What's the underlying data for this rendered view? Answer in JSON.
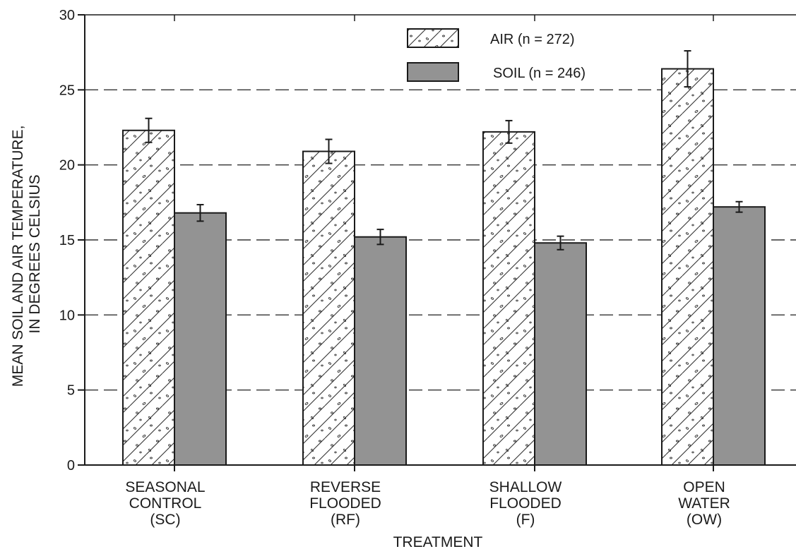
{
  "chart_data": {
    "type": "bar",
    "categories": [
      [
        "SEASONAL",
        "CONTROL",
        "(SC)"
      ],
      [
        "REVERSE",
        "FLOODED",
        "(RF)"
      ],
      [
        "SHALLOW",
        "FLOODED",
        "(F)"
      ],
      [
        "OPEN",
        "WATER",
        "(OW)"
      ]
    ],
    "series": [
      {
        "name": "AIR (n = 272)",
        "values": [
          22.3,
          20.9,
          22.2,
          26.4
        ],
        "error": [
          0.8,
          0.8,
          0.75,
          1.2
        ],
        "fill": "hatched-speckled",
        "color": "#ffffff"
      },
      {
        "name": "SOIL (n = 246)",
        "values": [
          16.8,
          15.2,
          14.8,
          17.2
        ],
        "error": [
          0.55,
          0.5,
          0.45,
          0.35
        ],
        "fill": "solid",
        "color": "#939393"
      }
    ],
    "xlabel": "TREATMENT",
    "ylabel": [
      "MEAN SOIL AND AIR TEMPERATURE,",
      "IN DEGREES CELSIUS"
    ],
    "ylim": [
      0,
      30
    ],
    "yticks": [
      0,
      5,
      10,
      15,
      20,
      25,
      30
    ],
    "grid": "dashed-horizontal",
    "legend_position": "top-center"
  }
}
